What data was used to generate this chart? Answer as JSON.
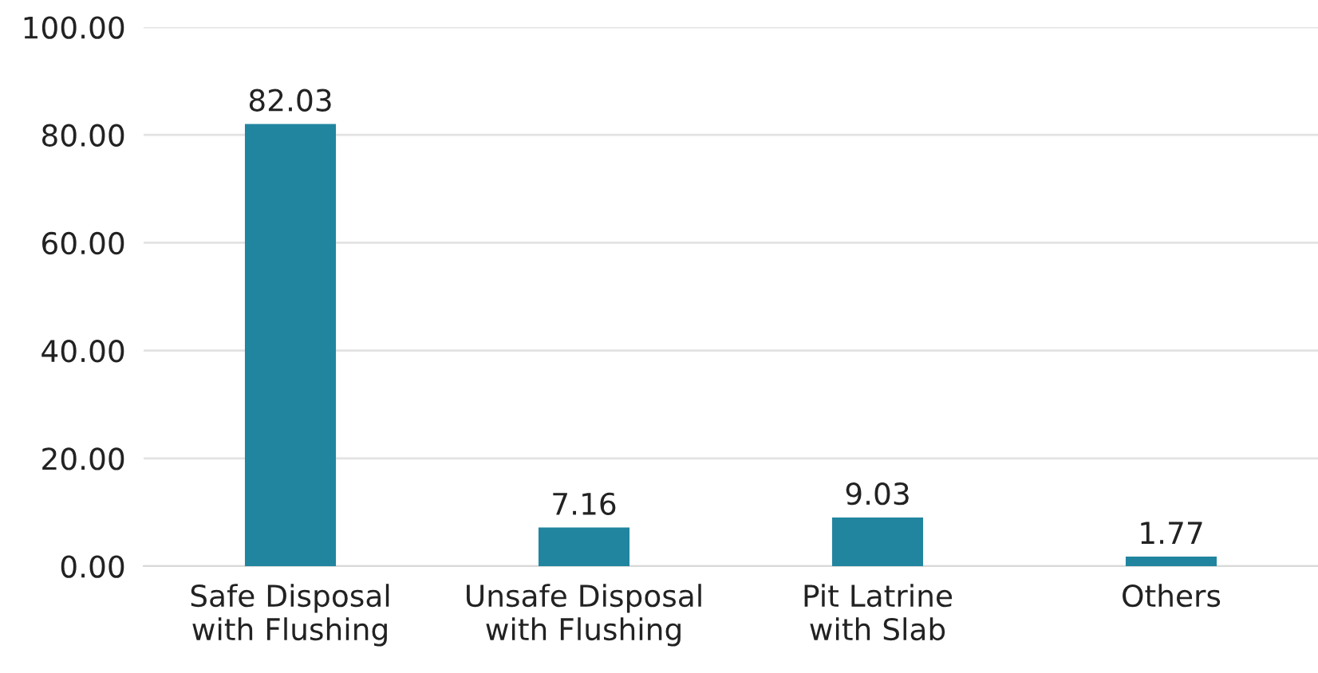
{
  "chart_data": {
    "type": "bar",
    "categories": [
      "Safe Disposal\nwith Flushing",
      "Unsafe Disposal\nwith Flushing",
      "Pit Latrine\nwith Slab",
      "Others"
    ],
    "values": [
      82.03,
      7.16,
      9.03,
      1.77
    ],
    "color": "#2185a0",
    "data_labels": true,
    "grid": "y",
    "legend": false,
    "ylim": [
      0,
      100
    ],
    "yticks": [
      {
        "value": 0,
        "label": "0.00"
      },
      {
        "value": 20,
        "label": "20.00"
      },
      {
        "value": 40,
        "label": "40.00"
      },
      {
        "value": 60,
        "label": "60.00"
      },
      {
        "value": 80,
        "label": "80.00"
      },
      {
        "value": 100,
        "label": "100.00"
      }
    ]
  }
}
